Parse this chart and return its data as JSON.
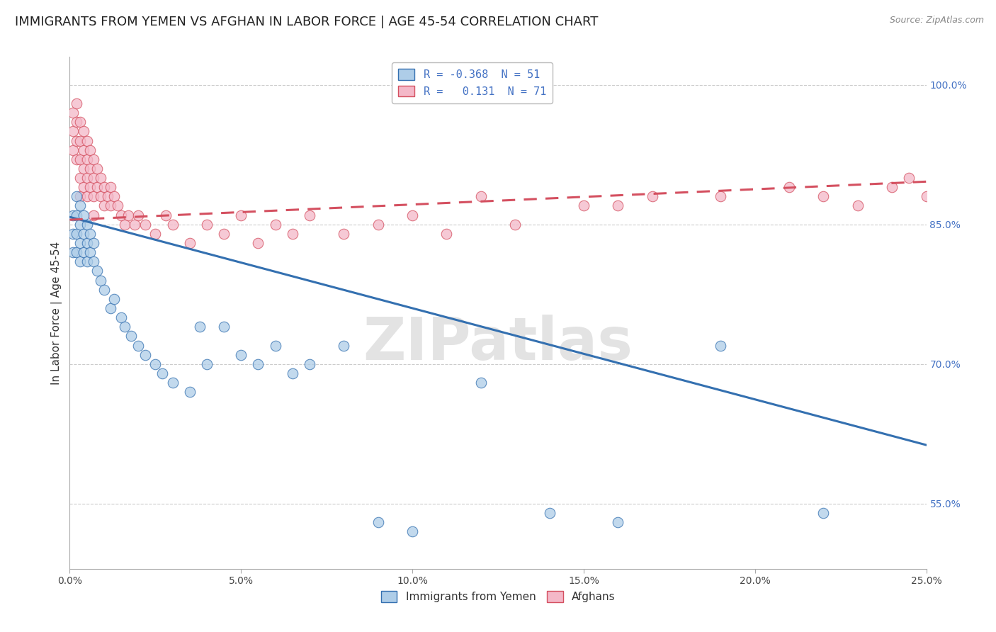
{
  "title": "IMMIGRANTS FROM YEMEN VS AFGHAN IN LABOR FORCE | AGE 45-54 CORRELATION CHART",
  "source": "Source: ZipAtlas.com",
  "ylabel": "In Labor Force | Age 45-54",
  "xlim": [
    0.0,
    0.25
  ],
  "ylim": [
    0.48,
    1.03
  ],
  "yticks": [
    0.55,
    0.7,
    0.85,
    1.0
  ],
  "ytick_labels": [
    "55.0%",
    "70.0%",
    "85.0%",
    "100.0%"
  ],
  "xticks": [
    0.0,
    0.05,
    0.1,
    0.15,
    0.2,
    0.25
  ],
  "xtick_labels": [
    "0.0%",
    "5.0%",
    "10.0%",
    "15.0%",
    "20.0%",
    "25.0%"
  ],
  "legend_line1": "R = -0.368  N = 51",
  "legend_line2": "R =   0.131  N = 71",
  "legend_labels": [
    "Immigrants from Yemen",
    "Afghans"
  ],
  "yemen_scatter_color": "#aecde8",
  "afghan_scatter_color": "#f4b8c8",
  "yemen_line_color": "#3470b0",
  "afghan_line_color": "#d45060",
  "background_color": "#ffffff",
  "grid_color": "#cccccc",
  "watermark": "ZIPatlas",
  "title_fontsize": 13,
  "axis_label_fontsize": 11,
  "tick_fontsize": 10,
  "yemen_line_x": [
    0.0,
    0.25
  ],
  "yemen_line_y": [
    0.858,
    0.613
  ],
  "afghan_line_x": [
    0.0,
    0.25
  ],
  "afghan_line_y": [
    0.855,
    0.896
  ],
  "yemen_x": [
    0.001,
    0.001,
    0.001,
    0.002,
    0.002,
    0.002,
    0.002,
    0.003,
    0.003,
    0.003,
    0.003,
    0.004,
    0.004,
    0.004,
    0.005,
    0.005,
    0.005,
    0.006,
    0.006,
    0.007,
    0.007,
    0.008,
    0.009,
    0.01,
    0.012,
    0.013,
    0.015,
    0.016,
    0.018,
    0.02,
    0.022,
    0.025,
    0.027,
    0.03,
    0.035,
    0.038,
    0.04,
    0.045,
    0.05,
    0.055,
    0.06,
    0.065,
    0.07,
    0.08,
    0.09,
    0.1,
    0.12,
    0.14,
    0.16,
    0.19,
    0.22
  ],
  "yemen_y": [
    0.86,
    0.84,
    0.82,
    0.88,
    0.86,
    0.84,
    0.82,
    0.87,
    0.85,
    0.83,
    0.81,
    0.86,
    0.84,
    0.82,
    0.85,
    0.83,
    0.81,
    0.84,
    0.82,
    0.83,
    0.81,
    0.8,
    0.79,
    0.78,
    0.76,
    0.77,
    0.75,
    0.74,
    0.73,
    0.72,
    0.71,
    0.7,
    0.69,
    0.68,
    0.67,
    0.74,
    0.7,
    0.74,
    0.71,
    0.7,
    0.72,
    0.69,
    0.7,
    0.72,
    0.53,
    0.52,
    0.68,
    0.54,
    0.53,
    0.72,
    0.54
  ],
  "afghan_x": [
    0.001,
    0.001,
    0.001,
    0.002,
    0.002,
    0.002,
    0.002,
    0.003,
    0.003,
    0.003,
    0.003,
    0.003,
    0.004,
    0.004,
    0.004,
    0.004,
    0.005,
    0.005,
    0.005,
    0.005,
    0.006,
    0.006,
    0.006,
    0.007,
    0.007,
    0.007,
    0.007,
    0.008,
    0.008,
    0.009,
    0.009,
    0.01,
    0.01,
    0.011,
    0.012,
    0.012,
    0.013,
    0.014,
    0.015,
    0.016,
    0.017,
    0.019,
    0.02,
    0.022,
    0.025,
    0.028,
    0.03,
    0.035,
    0.04,
    0.045,
    0.05,
    0.055,
    0.06,
    0.065,
    0.07,
    0.08,
    0.09,
    0.1,
    0.11,
    0.12,
    0.13,
    0.15,
    0.16,
    0.17,
    0.19,
    0.21,
    0.22,
    0.23,
    0.24,
    0.245,
    0.25
  ],
  "afghan_y": [
    0.97,
    0.95,
    0.93,
    0.98,
    0.96,
    0.94,
    0.92,
    0.96,
    0.94,
    0.92,
    0.9,
    0.88,
    0.95,
    0.93,
    0.91,
    0.89,
    0.94,
    0.92,
    0.9,
    0.88,
    0.93,
    0.91,
    0.89,
    0.92,
    0.9,
    0.88,
    0.86,
    0.91,
    0.89,
    0.9,
    0.88,
    0.89,
    0.87,
    0.88,
    0.87,
    0.89,
    0.88,
    0.87,
    0.86,
    0.85,
    0.86,
    0.85,
    0.86,
    0.85,
    0.84,
    0.86,
    0.85,
    0.83,
    0.85,
    0.84,
    0.86,
    0.83,
    0.85,
    0.84,
    0.86,
    0.84,
    0.85,
    0.86,
    0.84,
    0.88,
    0.85,
    0.87,
    0.87,
    0.88,
    0.88,
    0.89,
    0.88,
    0.87,
    0.89,
    0.9,
    0.88
  ]
}
